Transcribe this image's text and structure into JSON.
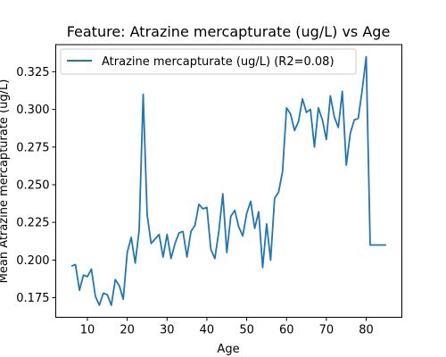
{
  "chart_data": {
    "type": "line",
    "title": "Feature: Atrazine mercapturate (ug/L) vs Age",
    "xlabel": "Age",
    "ylabel": "Mean Atrazine mercapturate (ug/L)",
    "xlim": [
      2.05,
      88.95
    ],
    "ylim": [
      0.162,
      0.343
    ],
    "x_ticks": [
      10,
      20,
      30,
      40,
      50,
      60,
      70,
      80
    ],
    "y_ticks": [
      0.175,
      0.2,
      0.225,
      0.25,
      0.275,
      0.3,
      0.325
    ],
    "x_tick_labels": [
      "10",
      "20",
      "30",
      "40",
      "50",
      "60",
      "70",
      "80"
    ],
    "y_tick_labels": [
      "0.175",
      "0.200",
      "0.225",
      "0.250",
      "0.275",
      "0.300",
      "0.325"
    ],
    "grid": false,
    "legend_position": "top-left",
    "line_color": "#1f77b4",
    "series": [
      {
        "name": "Atrazine mercapturate (ug/L) (R2=0.08)",
        "x": [
          6,
          7,
          8,
          9,
          10,
          11,
          12,
          13,
          14,
          15,
          16,
          17,
          18,
          19,
          20,
          21,
          22,
          23,
          24,
          25,
          26,
          27,
          28,
          29,
          30,
          31,
          32,
          33,
          34,
          35,
          36,
          37,
          38,
          39,
          40,
          41,
          42,
          43,
          44,
          45,
          46,
          47,
          48,
          49,
          50,
          51,
          52,
          53,
          54,
          55,
          56,
          57,
          58,
          59,
          60,
          61,
          62,
          63,
          64,
          65,
          66,
          67,
          68,
          69,
          70,
          71,
          72,
          73,
          74,
          75,
          76,
          77,
          78,
          79,
          80,
          81,
          85
        ],
        "y": [
          0.196,
          0.197,
          0.18,
          0.19,
          0.189,
          0.194,
          0.176,
          0.17,
          0.178,
          0.177,
          0.17,
          0.187,
          0.183,
          0.174,
          0.205,
          0.215,
          0.198,
          0.22,
          0.31,
          0.23,
          0.211,
          0.214,
          0.217,
          0.202,
          0.217,
          0.201,
          0.211,
          0.218,
          0.219,
          0.202,
          0.219,
          0.223,
          0.237,
          0.234,
          0.235,
          0.207,
          0.201,
          0.219,
          0.244,
          0.205,
          0.229,
          0.233,
          0.222,
          0.216,
          0.231,
          0.239,
          0.221,
          0.232,
          0.195,
          0.224,
          0.2,
          0.241,
          0.245,
          0.259,
          0.301,
          0.297,
          0.286,
          0.292,
          0.307,
          0.298,
          0.3,
          0.275,
          0.301,
          0.293,
          0.28,
          0.309,
          0.295,
          0.288,
          0.312,
          0.263,
          0.284,
          0.293,
          0.294,
          0.313,
          0.335,
          0.21,
          0.21
        ]
      }
    ]
  }
}
